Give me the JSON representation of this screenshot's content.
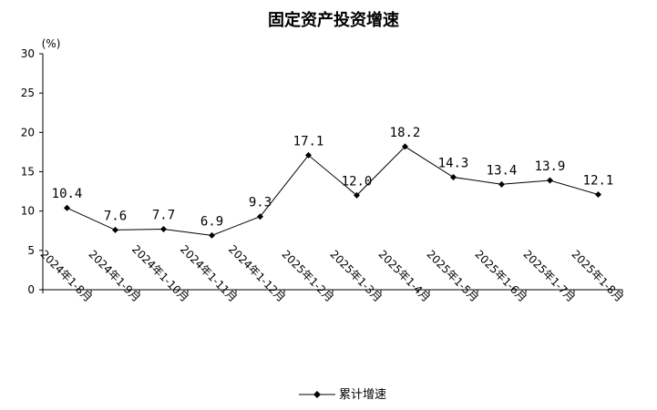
{
  "chart_data": {
    "type": "line",
    "title": "固定资产投资增速",
    "ylabel": "(%)",
    "xlabel": "",
    "ylim": [
      0,
      30
    ],
    "yticks": [
      0,
      5,
      10,
      15,
      20,
      25,
      30
    ],
    "grid": false,
    "legend_position": "bottom-center",
    "categories": [
      "2024年1-8月",
      "2024年1-9月",
      "2024年1-10月",
      "2024年1-11月",
      "2024年1-12月",
      "2025年1-2月",
      "2025年1-3月",
      "2025年1-4月",
      "2025年1-5月",
      "2025年1-6月",
      "2025年1-7月",
      "2025年1-8月"
    ],
    "series": [
      {
        "name": "累计增速",
        "values": [
          10.4,
          7.6,
          7.7,
          6.9,
          9.3,
          17.1,
          12.0,
          18.2,
          14.3,
          13.4,
          13.9,
          12.1
        ],
        "data_labels": [
          "10.4",
          "7.6",
          "7.7",
          "6.9",
          "9.3",
          "17.1",
          "12.0",
          "18.2",
          "14.3",
          "13.4",
          "13.9",
          "12.1"
        ]
      }
    ],
    "colors": {
      "line": "#000000",
      "marker": "#000000",
      "axis": "#000000"
    }
  }
}
